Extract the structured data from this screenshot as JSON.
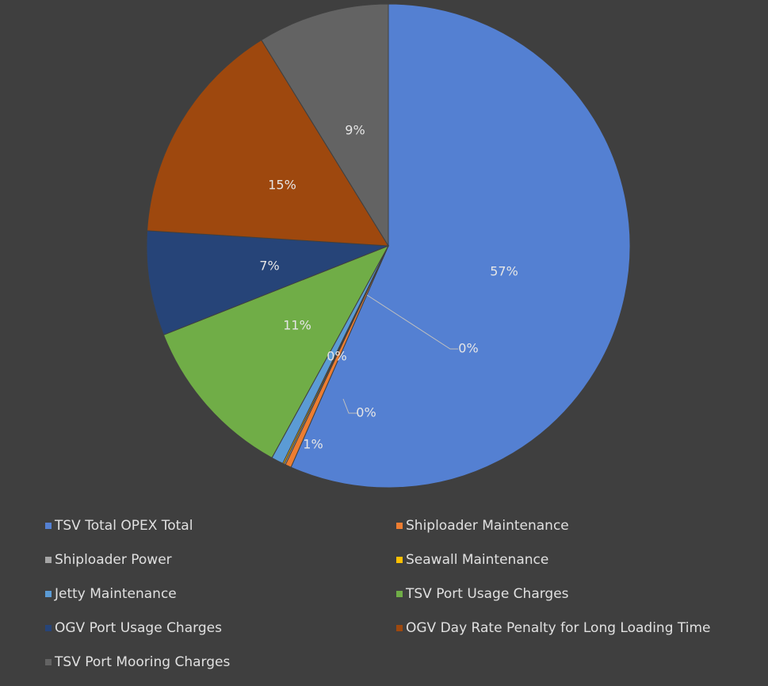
{
  "chart_data": {
    "type": "pie",
    "categories": [
      "TSV Total OPEX Total",
      "Shiploader Maintenance",
      "Shiploader Power",
      "Seawall Maintenance",
      "Jetty Maintenance",
      "TSV Port Usage Charges",
      "OGV Port Usage Charges",
      "OGV Day Rate Penalty for Long Loading Time",
      "TSV Port Mooring Charges"
    ],
    "values": [
      56.6,
      0.4,
      0.1,
      0.1,
      0.8,
      11.0,
      7.0,
      15.2,
      8.8
    ],
    "value_labels": [
      "57%",
      "0%",
      "0%",
      "0%",
      "1%",
      "11%",
      "7%",
      "15%",
      "9%"
    ],
    "colors": [
      "#5480d2",
      "#ed7d31",
      "#a5a5a5",
      "#ffc000",
      "#5b9bd5",
      "#70ad47",
      "#264478",
      "#9e480e",
      "#636363"
    ],
    "legend": "bottom"
  }
}
